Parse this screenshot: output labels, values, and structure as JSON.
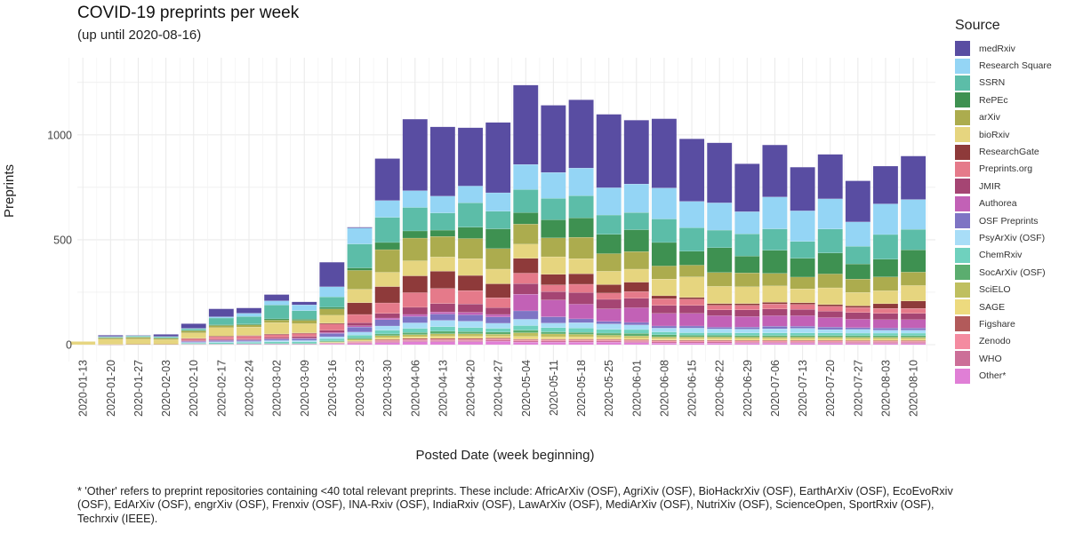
{
  "chart_data": {
    "type": "bar",
    "stacked": true,
    "title": "COVID-19 preprints per week",
    "subtitle": "(up until 2020-08-16)",
    "xlabel": "Posted Date (week beginning)",
    "ylabel": "Preprints",
    "ylim": [
      0,
      1400
    ],
    "yticks": [
      0,
      500,
      1000
    ],
    "grid": true,
    "legend_title": "Source",
    "legend_position": "right",
    "categories": [
      "2020-01-13",
      "2020-01-20",
      "2020-01-27",
      "2020-02-03",
      "2020-02-10",
      "2020-02-17",
      "2020-02-24",
      "2020-03-02",
      "2020-03-09",
      "2020-03-16",
      "2020-03-23",
      "2020-03-30",
      "2020-04-06",
      "2020-04-13",
      "2020-04-20",
      "2020-04-27",
      "2020-05-04",
      "2020-05-11",
      "2020-05-18",
      "2020-05-25",
      "2020-06-01",
      "2020-06-08",
      "2020-06-15",
      "2020-06-22",
      "2020-06-29",
      "2020-07-06",
      "2020-07-13",
      "2020-07-20",
      "2020-07-27",
      "2020-08-03",
      "2020-08-10"
    ],
    "series": [
      {
        "name": "Other*",
        "color": "#E07FD6",
        "values": [
          0,
          0,
          0,
          0,
          2,
          2,
          3,
          3,
          3,
          4,
          6,
          10,
          14,
          14,
          14,
          16,
          12,
          12,
          12,
          12,
          10,
          8,
          8,
          8,
          7,
          7,
          7,
          7,
          6,
          6,
          6
        ]
      },
      {
        "name": "WHO",
        "color": "#CC6F98",
        "values": [
          0,
          0,
          0,
          0,
          0,
          0,
          0,
          0,
          0,
          2,
          4,
          5,
          6,
          6,
          6,
          6,
          6,
          6,
          6,
          6,
          5,
          5,
          5,
          5,
          5,
          5,
          5,
          5,
          5,
          5,
          5
        ]
      },
      {
        "name": "Zenodo",
        "color": "#F48BA0",
        "values": [
          0,
          0,
          0,
          0,
          0,
          0,
          0,
          0,
          0,
          2,
          3,
          5,
          5,
          5,
          5,
          5,
          5,
          5,
          5,
          5,
          5,
          5,
          5,
          5,
          5,
          5,
          5,
          5,
          5,
          5,
          5
        ]
      },
      {
        "name": "Figshare",
        "color": "#B25A5A",
        "values": [
          0,
          0,
          0,
          0,
          0,
          0,
          0,
          0,
          0,
          1,
          3,
          5,
          5,
          5,
          5,
          5,
          4,
          4,
          4,
          4,
          4,
          4,
          4,
          4,
          4,
          4,
          4,
          4,
          4,
          4,
          4
        ]
      },
      {
        "name": "SAGE",
        "color": "#EDDA7E",
        "values": [
          0,
          0,
          0,
          0,
          0,
          0,
          0,
          0,
          0,
          2,
          4,
          8,
          8,
          10,
          10,
          8,
          12,
          10,
          10,
          8,
          8,
          7,
          7,
          7,
          7,
          7,
          7,
          7,
          7,
          7,
          7
        ]
      },
      {
        "name": "SciELO",
        "color": "#BFBF5F",
        "values": [
          0,
          0,
          0,
          0,
          0,
          0,
          0,
          0,
          0,
          3,
          6,
          10,
          10,
          12,
          12,
          10,
          18,
          14,
          12,
          10,
          10,
          8,
          8,
          8,
          8,
          8,
          8,
          8,
          8,
          8,
          8
        ]
      },
      {
        "name": "SocArXiv (OSF)",
        "color": "#5BAD6F",
        "values": [
          0,
          0,
          0,
          0,
          2,
          2,
          2,
          3,
          3,
          4,
          6,
          8,
          10,
          12,
          10,
          10,
          12,
          10,
          10,
          10,
          12,
          10,
          8,
          8,
          8,
          8,
          8,
          8,
          8,
          8,
          8
        ]
      },
      {
        "name": "ChemRxiv",
        "color": "#6FD1BE",
        "values": [
          0,
          0,
          0,
          0,
          4,
          6,
          6,
          8,
          8,
          10,
          14,
          18,
          20,
          22,
          20,
          18,
          22,
          20,
          20,
          18,
          18,
          14,
          12,
          12,
          12,
          12,
          12,
          12,
          12,
          12,
          12
        ]
      },
      {
        "name": "PsyArXiv (OSF)",
        "color": "#A8DDF7",
        "values": [
          0,
          0,
          0,
          0,
          3,
          4,
          4,
          6,
          6,
          10,
          14,
          20,
          26,
          30,
          30,
          24,
          30,
          22,
          26,
          26,
          22,
          18,
          22,
          18,
          18,
          20,
          22,
          16,
          18,
          14,
          14
        ]
      },
      {
        "name": "OSF Preprints",
        "color": "#7E74C4",
        "values": [
          0,
          0,
          0,
          0,
          4,
          6,
          6,
          6,
          8,
          16,
          24,
          30,
          30,
          30,
          30,
          30,
          40,
          30,
          18,
          12,
          12,
          10,
          10,
          8,
          10,
          12,
          10,
          12,
          8,
          10,
          10
        ]
      },
      {
        "name": "Authorea",
        "color": "#C261B6",
        "values": [
          0,
          0,
          0,
          0,
          2,
          2,
          2,
          2,
          3,
          4,
          6,
          8,
          10,
          10,
          12,
          12,
          80,
          80,
          70,
          60,
          70,
          60,
          60,
          55,
          50,
          50,
          50,
          45,
          40,
          40,
          40
        ]
      },
      {
        "name": "JMIR",
        "color": "#A54573",
        "values": [
          0,
          0,
          0,
          0,
          3,
          4,
          4,
          6,
          8,
          10,
          14,
          22,
          34,
          40,
          40,
          32,
          50,
          40,
          55,
          45,
          45,
          38,
          38,
          28,
          32,
          32,
          30,
          30,
          32,
          30,
          30
        ]
      },
      {
        "name": "Preprints.org",
        "color": "#E57A8A",
        "values": [
          0,
          0,
          0,
          0,
          8,
          12,
          14,
          14,
          14,
          30,
          40,
          50,
          70,
          72,
          64,
          48,
          50,
          32,
          40,
          30,
          32,
          32,
          30,
          22,
          22,
          24,
          24,
          24,
          24,
          24,
          24
        ]
      },
      {
        "name": "ResearchGate",
        "color": "#8E3A3A",
        "values": [
          0,
          1,
          2,
          2,
          2,
          3,
          3,
          3,
          3,
          4,
          56,
          78,
          80,
          82,
          72,
          66,
          70,
          50,
          50,
          40,
          45,
          14,
          8,
          8,
          8,
          8,
          8,
          8,
          8,
          22,
          35
        ]
      },
      {
        "name": "bioRxiv",
        "color": "#E6D57F",
        "values": [
          15,
          25,
          25,
          22,
          26,
          40,
          40,
          54,
          44,
          38,
          64,
          68,
          72,
          68,
          80,
          70,
          68,
          84,
          72,
          64,
          62,
          80,
          98,
          82,
          80,
          78,
          66,
          80,
          64,
          62,
          74
        ]
      },
      {
        "name": "arXiv",
        "color": "#ACAC4E",
        "values": [
          0,
          6,
          8,
          6,
          10,
          10,
          10,
          12,
          16,
          30,
          90,
          108,
          108,
          98,
          96,
          98,
          96,
          90,
          102,
          84,
          84,
          62,
          56,
          66,
          66,
          60,
          56,
          66,
          64,
          66,
          64
        ]
      },
      {
        "name": "RePEc",
        "color": "#3E9151",
        "values": [
          0,
          2,
          2,
          2,
          2,
          4,
          4,
          6,
          6,
          8,
          12,
          34,
          34,
          30,
          54,
          94,
          54,
          86,
          92,
          92,
          104,
          112,
          66,
          118,
          80,
          110,
          90,
          100,
          72,
          84,
          106
        ]
      },
      {
        "name": "SSRN",
        "color": "#5CBDA8",
        "values": [
          0,
          3,
          4,
          5,
          8,
          32,
          36,
          66,
          40,
          50,
          114,
          120,
          112,
          82,
          116,
          84,
          110,
          102,
          106,
          92,
          82,
          112,
          112,
          84,
          106,
          102,
          80,
          114,
          84,
          118,
          98
        ]
      },
      {
        "name": "Research Square",
        "color": "#94D5F5",
        "values": [
          0,
          2,
          2,
          2,
          2,
          6,
          16,
          20,
          28,
          48,
          76,
          80,
          80,
          80,
          80,
          88,
          120,
          124,
          132,
          130,
          136,
          148,
          126,
          130,
          106,
          152,
          146,
          144,
          116,
          146,
          142
        ]
      },
      {
        "name": "medRxiv",
        "color": "#594DA2",
        "values": [
          0,
          6,
          2,
          10,
          22,
          38,
          25,
          30,
          14,
          117,
          4,
          200,
          341,
          330,
          278,
          335,
          378,
          320,
          325,
          350,
          304,
          330,
          298,
          286,
          228,
          248,
          208,
          212,
          196,
          180,
          207
        ]
      }
    ],
    "footnote": "* 'Other' refers to preprint repositories containing <40 total relevant preprints. These include: AfricArXiv (OSF), AgriXiv (OSF), BioHackrXiv (OSF), EarthArXiv (OSF), EcoEvoRxiv (OSF), EdArXiv (OSF), engrXiv (OSF), Frenxiv (OSF), INA-Rxiv (OSF), IndiaRxiv (OSF), LawArXiv (OSF), MediArXiv (OSF), NutriXiv (OSF), ScienceOpen, SportRxiv (OSF), Techrxiv (IEEE)."
  },
  "legend_order": [
    "medRxiv",
    "Research Square",
    "SSRN",
    "RePEc",
    "arXiv",
    "bioRxiv",
    "ResearchGate",
    "Preprints.org",
    "JMIR",
    "Authorea",
    "OSF Preprints",
    "PsyArXiv (OSF)",
    "ChemRxiv",
    "SocArXiv (OSF)",
    "SciELO",
    "SAGE",
    "Figshare",
    "Zenodo",
    "WHO",
    "Other*"
  ]
}
